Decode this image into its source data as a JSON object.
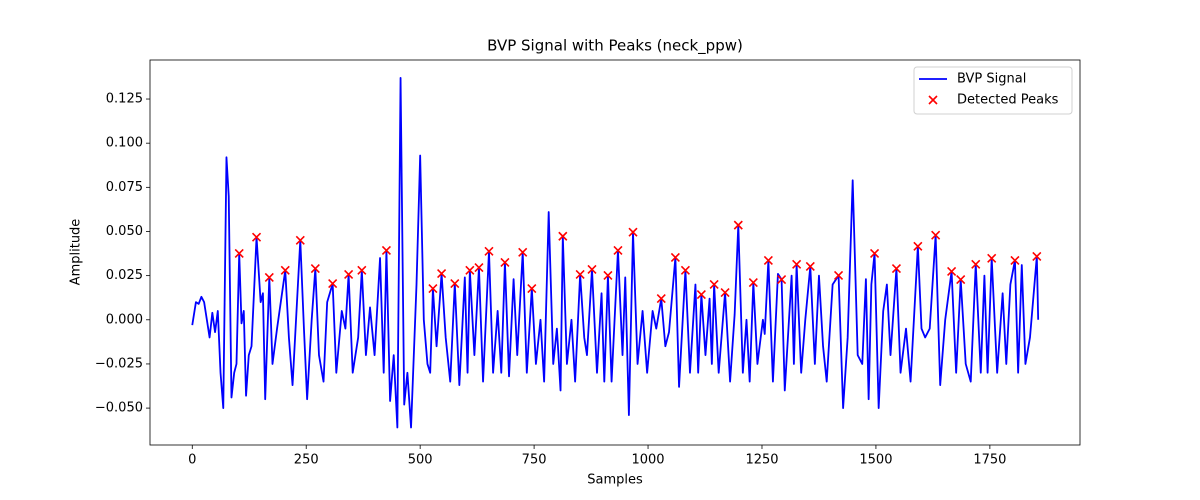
{
  "chart_data": {
    "type": "line",
    "title": "BVP Signal with Peaks (neck_ppw)",
    "x_label": "Samples",
    "y_label": "Amplitude",
    "legend": "upper right",
    "xlim": [
      -92.75,
      1947.75
    ],
    "ylim": [
      -0.0709,
      0.1471
    ],
    "xticks": [
      0,
      250,
      500,
      750,
      1000,
      1250,
      1500,
      1750
    ],
    "yticks": [
      {
        "value": -0.05,
        "label": "−0.050"
      },
      {
        "value": -0.025,
        "label": "−0.025"
      },
      {
        "value": 0,
        "label": "0.000"
      },
      {
        "value": 0.025,
        "label": "0.025"
      },
      {
        "value": 0.05,
        "label": "0.050"
      },
      {
        "value": 0.075,
        "label": "0.075"
      },
      {
        "value": 0.1,
        "label": "0.100"
      },
      {
        "value": 0.125,
        "label": "0.125"
      }
    ],
    "series": [
      {
        "name": "BVP Signal",
        "type": "line",
        "color": "#0000ff",
        "x": [
          0,
          8,
          14,
          20,
          26,
          32,
          38,
          44,
          50,
          56,
          62,
          68,
          75,
          80,
          86,
          92,
          97,
          103,
          108,
          113,
          118,
          124,
          130,
          141,
          150,
          155,
          160,
          169,
          176,
          186,
          204,
          212,
          220,
          237,
          245,
          252,
          262,
          270,
          278,
          288,
          296,
          308,
          316,
          328,
          336,
          343,
          352,
          364,
          372,
          381,
          390,
          400,
          412,
          420,
          426,
          434,
          442,
          450,
          457,
          465,
          472,
          480,
          492,
          500,
          508,
          516,
          522,
          528,
          536,
          547,
          556,
          566,
          576,
          586,
          598,
          604,
          609,
          619,
          629,
          638,
          651,
          660,
          670,
          678,
          686,
          695,
          705,
          713,
          725,
          734,
          745,
          754,
          764,
          772,
          782,
          792,
          800,
          808,
          813,
          822,
          832,
          840,
          851,
          860,
          866,
          877,
          888,
          898,
          904,
          912,
          920,
          934,
          944,
          950,
          958,
          967,
          977,
          988,
          998,
          1010,
          1018,
          1029,
          1038,
          1046,
          1060,
          1068,
          1082,
          1092,
          1104,
          1110,
          1117,
          1126,
          1135,
          1140,
          1145,
          1155,
          1169,
          1180,
          1190,
          1198,
          1208,
          1216,
          1223,
          1231,
          1240,
          1252,
          1256,
          1264,
          1274,
          1285,
          1293,
          1300,
          1315,
          1320,
          1326,
          1336,
          1345,
          1356,
          1366,
          1375,
          1384,
          1392,
          1405,
          1418,
          1428,
          1438,
          1449,
          1460,
          1470,
          1478,
          1484,
          1490,
          1497,
          1506,
          1516,
          1524,
          1532,
          1545,
          1554,
          1566,
          1576,
          1592,
          1600,
          1608,
          1618,
          1631,
          1641,
          1652,
          1666,
          1676,
          1686,
          1697,
          1708,
          1719,
          1730,
          1738,
          1745,
          1754,
          1766,
          1778,
          1786,
          1795,
          1805,
          1812,
          1820,
          1828,
          1838,
          1853,
          1856
        ],
        "values": [
          -0.003,
          0.01,
          0.009,
          0.013,
          0.01,
          0.0,
          -0.01,
          0.004,
          -0.007,
          0.005,
          -0.03,
          -0.05,
          0.092,
          0.07,
          -0.044,
          -0.03,
          -0.025,
          0.0376,
          -0.002,
          0.005,
          -0.043,
          -0.02,
          -0.015,
          0.0468,
          0.01,
          0.015,
          -0.045,
          0.024,
          -0.025,
          -0.005,
          0.028,
          -0.01,
          -0.037,
          0.045,
          -0.005,
          -0.045,
          0.0,
          0.029,
          -0.02,
          -0.035,
          0.01,
          0.0205,
          -0.03,
          0.005,
          -0.005,
          0.0257,
          -0.03,
          -0.01,
          0.028,
          -0.02,
          0.007,
          -0.02,
          0.035,
          -0.03,
          0.0393,
          -0.046,
          -0.02,
          -0.061,
          0.137,
          -0.048,
          -0.03,
          -0.061,
          0.02,
          0.093,
          0.0,
          -0.025,
          -0.03,
          0.0177,
          -0.015,
          0.0262,
          -0.01,
          -0.035,
          0.0205,
          -0.037,
          0.024,
          -0.03,
          0.028,
          -0.02,
          0.0296,
          -0.035,
          0.0388,
          -0.03,
          0.005,
          -0.03,
          0.0325,
          -0.032,
          0.023,
          -0.02,
          0.0382,
          -0.03,
          0.0177,
          -0.025,
          0.0,
          -0.035,
          0.061,
          -0.025,
          -0.005,
          -0.04,
          0.0473,
          -0.025,
          0.0,
          -0.035,
          0.0257,
          -0.01,
          -0.02,
          0.0285,
          -0.03,
          0.015,
          -0.035,
          0.0251,
          -0.035,
          0.0393,
          -0.02,
          0.024,
          -0.054,
          0.0496,
          -0.025,
          0.005,
          -0.03,
          0.005,
          -0.005,
          0.012,
          -0.015,
          -0.007,
          0.0353,
          -0.038,
          0.028,
          -0.03,
          0.02,
          -0.03,
          0.0143,
          -0.02,
          0.012,
          -0.025,
          0.02,
          -0.03,
          0.0154,
          -0.035,
          0.003,
          0.0536,
          -0.03,
          0.0,
          -0.035,
          0.0211,
          -0.025,
          0.0,
          -0.008,
          0.0336,
          -0.035,
          0.026,
          0.0228,
          -0.04,
          0.025,
          -0.025,
          0.0314,
          -0.03,
          0.0,
          0.0302,
          -0.025,
          0.025,
          -0.015,
          -0.035,
          0.02,
          0.0251,
          -0.05,
          -0.01,
          0.079,
          -0.02,
          -0.025,
          0.023,
          -0.045,
          0.02,
          0.0376,
          -0.05,
          0.005,
          0.02,
          -0.02,
          0.029,
          -0.03,
          -0.005,
          -0.035,
          0.0416,
          -0.005,
          -0.01,
          -0.005,
          0.0479,
          -0.037,
          0.0,
          0.0274,
          -0.03,
          0.0228,
          -0.025,
          -0.035,
          0.0314,
          -0.03,
          0.025,
          -0.03,
          0.0348,
          -0.03,
          0.015,
          -0.025,
          0.02,
          0.0336,
          -0.03,
          0.031,
          -0.025,
          -0.01,
          0.0359,
          0.0
        ]
      },
      {
        "name": "Detected Peaks",
        "type": "scatter",
        "color": "#ff0000",
        "x": [
          103,
          141,
          169,
          204,
          237,
          270,
          308,
          343,
          372,
          426,
          528,
          547,
          576,
          609,
          629,
          651,
          686,
          725,
          745,
          813,
          851,
          877,
          912,
          934,
          967,
          1029,
          1060,
          1082,
          1117,
          1145,
          1169,
          1198,
          1231,
          1264,
          1293,
          1326,
          1356,
          1418,
          1497,
          1545,
          1592,
          1631,
          1666,
          1686,
          1719,
          1754,
          1805,
          1853
        ],
        "values": [
          0.0376,
          0.0468,
          0.024,
          0.028,
          0.045,
          0.029,
          0.0205,
          0.0257,
          0.028,
          0.0393,
          0.0177,
          0.0262,
          0.0205,
          0.028,
          0.0296,
          0.0388,
          0.0325,
          0.0382,
          0.0177,
          0.0473,
          0.0257,
          0.0285,
          0.0251,
          0.0393,
          0.0496,
          0.012,
          0.0353,
          0.028,
          0.0143,
          0.02,
          0.0154,
          0.0536,
          0.0211,
          0.0336,
          0.0228,
          0.0314,
          0.0302,
          0.0251,
          0.0376,
          0.029,
          0.0416,
          0.0479,
          0.0274,
          0.0228,
          0.0314,
          0.0348,
          0.0336,
          0.0359
        ]
      }
    ]
  }
}
